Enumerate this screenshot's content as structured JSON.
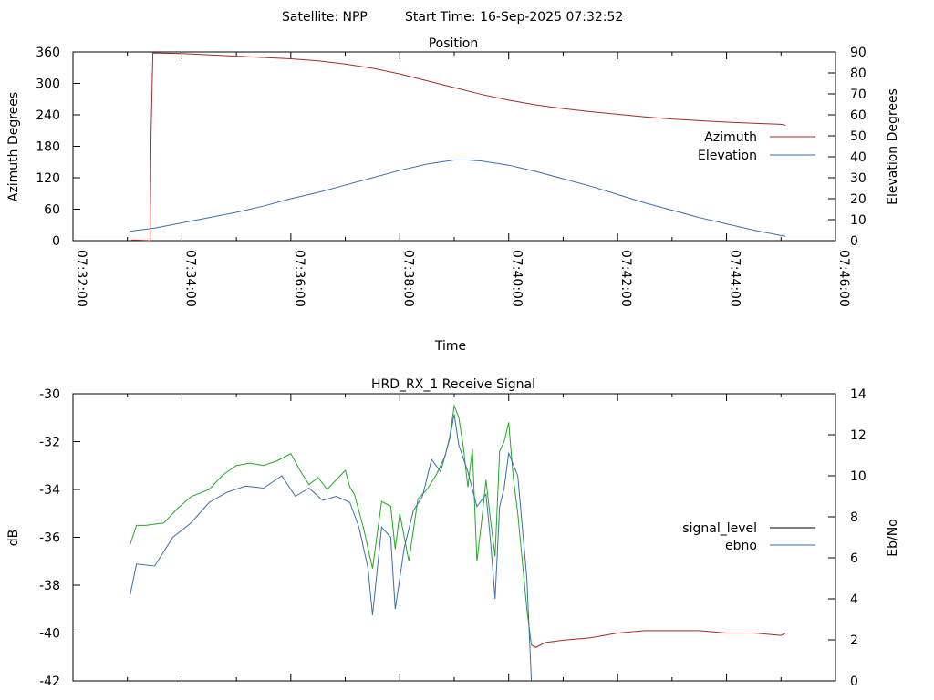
{
  "header": {
    "satellite": "Satellite: NPP",
    "start_time": "Start Time: 16-Sep-2025 07:32:52"
  },
  "chart_data": [
    {
      "type": "line",
      "title": "Position",
      "xlabel": "Time",
      "ylabel": "Azimuth Degrees",
      "y2label": "Elevation Degrees",
      "x_ticks": [
        "07:32:00",
        "07:34:00",
        "07:36:00",
        "07:38:00",
        "07:40:00",
        "07:42:00",
        "07:44:00",
        "07:46:00"
      ],
      "y_ticks": [
        0,
        60,
        120,
        180,
        240,
        300,
        360
      ],
      "y2_ticks": [
        0,
        10,
        20,
        30,
        40,
        50,
        60,
        70,
        80,
        90
      ],
      "xlim": [
        "07:32:00",
        "07:46:00"
      ],
      "ylim": [
        0,
        360
      ],
      "y2lim": [
        0,
        90
      ],
      "legend_position": "right",
      "series": [
        {
          "name": "Azimuth",
          "axis": "left",
          "color": "#a52a2a",
          "x": [
            "07:33:04",
            "07:33:10",
            "07:33:25",
            "07:33:26",
            "07:33:28",
            "07:34:00",
            "07:35:00",
            "07:36:00",
            "07:36:30",
            "07:37:00",
            "07:37:30",
            "07:38:00",
            "07:38:30",
            "07:39:00",
            "07:39:30",
            "07:40:00",
            "07:40:30",
            "07:41:00",
            "07:41:30",
            "07:42:00",
            "07:42:30",
            "07:43:00",
            "07:43:30",
            "07:44:00",
            "07:44:30",
            "07:45:00",
            "07:45:05"
          ],
          "y": [
            1,
            1,
            0,
            200,
            358,
            357,
            352,
            347,
            343,
            337,
            329,
            318,
            305,
            292,
            279,
            268,
            259,
            252,
            246,
            241,
            236,
            232,
            229,
            226,
            224,
            222,
            220
          ]
        },
        {
          "name": "Elevation",
          "axis": "right",
          "color": "#3b6fb0",
          "x": [
            "07:33:03",
            "07:33:30",
            "07:34:00",
            "07:34:30",
            "07:35:00",
            "07:35:30",
            "07:36:00",
            "07:36:30",
            "07:37:00",
            "07:37:30",
            "07:38:00",
            "07:38:30",
            "07:39:00",
            "07:39:15",
            "07:39:30",
            "07:40:00",
            "07:40:30",
            "07:41:00",
            "07:41:30",
            "07:42:00",
            "07:42:30",
            "07:43:00",
            "07:43:30",
            "07:44:00",
            "07:44:30",
            "07:45:05"
          ],
          "y": [
            4.5,
            6,
            8.5,
            11,
            13.5,
            16.5,
            20,
            23,
            26.5,
            30,
            33.5,
            36.5,
            38.5,
            38.5,
            38,
            36,
            33,
            29.5,
            26,
            22,
            18,
            14.5,
            11,
            8,
            5,
            2
          ]
        }
      ]
    },
    {
      "type": "line",
      "title": "HRD_RX_1 Receive Signal",
      "ylabel": "dB",
      "y2label": "Eb/No",
      "y_ticks": [
        -42,
        -40,
        -38,
        -36,
        -34,
        -32,
        -30
      ],
      "y2_ticks": [
        0,
        2,
        4,
        6,
        8,
        10,
        12,
        14
      ],
      "xlim": [
        "07:32:00",
        "07:46:00"
      ],
      "ylim": [
        -42,
        -30
      ],
      "y2lim": [
        0,
        14
      ],
      "legend_position": "right",
      "series": [
        {
          "name": "signal_level",
          "axis": "left",
          "color": "#000000",
          "segment_colors": [
            "#22aa22",
            "#a52a2a"
          ],
          "x": [
            "07:33:03",
            "07:33:10",
            "07:33:20",
            "07:33:40",
            "07:33:55",
            "07:34:10",
            "07:34:30",
            "07:34:45",
            "07:35:00",
            "07:35:15",
            "07:35:30",
            "07:35:45",
            "07:36:00",
            "07:36:10",
            "07:36:20",
            "07:36:30",
            "07:36:40",
            "07:36:50",
            "07:37:00",
            "07:37:05",
            "07:37:10",
            "07:37:20",
            "07:37:30",
            "07:37:40",
            "07:37:50",
            "07:37:55",
            "07:38:00",
            "07:38:10",
            "07:38:20",
            "07:38:30",
            "07:38:40",
            "07:38:50",
            "07:38:55",
            "07:39:00",
            "07:39:05",
            "07:39:10",
            "07:39:15",
            "07:39:20",
            "07:39:25",
            "07:39:30",
            "07:39:35",
            "07:39:40",
            "07:39:45",
            "07:39:50",
            "07:39:55",
            "07:40:00",
            "07:40:05",
            "07:40:10",
            "07:40:15",
            "07:40:20",
            "07:40:25",
            "07:40:30",
            "07:40:40",
            "07:41:00",
            "07:41:30",
            "07:42:00",
            "07:42:30",
            "07:43:00",
            "07:43:30",
            "07:44:00",
            "07:44:30",
            "07:45:00",
            "07:45:05"
          ],
          "y": [
            -36.3,
            -35.5,
            -35.5,
            -35.4,
            -34.8,
            -34.3,
            -34.0,
            -33.4,
            -33.0,
            -32.9,
            -33.0,
            -32.8,
            -32.5,
            -33.2,
            -33.8,
            -33.5,
            -34.0,
            -33.6,
            -33.2,
            -33.9,
            -34.2,
            -35.6,
            -37.3,
            -34.5,
            -34.7,
            -36.5,
            -35.0,
            -37.0,
            -34.4,
            -34.0,
            -33.4,
            -32.6,
            -31.8,
            -30.5,
            -31.0,
            -32.2,
            -33.9,
            -32.3,
            -37.0,
            -35.4,
            -33.6,
            -35.3,
            -36.8,
            -32.4,
            -32.0,
            -31.2,
            -33.5,
            -35.0,
            -37.0,
            -39.0,
            -40.5,
            -40.6,
            -40.4,
            -40.3,
            -40.2,
            -40.0,
            -39.9,
            -39.9,
            -39.9,
            -40.0,
            -40.0,
            -40.1,
            -40.0
          ]
        },
        {
          "name": "ebno",
          "axis": "right",
          "color": "#3b6fb0",
          "x": [
            "07:33:03",
            "07:33:10",
            "07:33:30",
            "07:33:50",
            "07:34:10",
            "07:34:30",
            "07:34:50",
            "07:35:10",
            "07:35:30",
            "07:35:50",
            "07:36:05",
            "07:36:20",
            "07:36:35",
            "07:36:50",
            "07:37:05",
            "07:37:15",
            "07:37:25",
            "07:37:30",
            "07:37:40",
            "07:37:50",
            "07:37:55",
            "07:38:05",
            "07:38:15",
            "07:38:25",
            "07:38:35",
            "07:38:45",
            "07:38:55",
            "07:39:00",
            "07:39:05",
            "07:39:15",
            "07:39:25",
            "07:39:35",
            "07:39:40",
            "07:39:45",
            "07:39:50",
            "07:39:55",
            "07:40:00",
            "07:40:10",
            "07:40:20",
            "07:40:25"
          ],
          "y": [
            4.2,
            5.7,
            5.6,
            7.0,
            7.7,
            8.7,
            9.2,
            9.5,
            9.4,
            10.0,
            9.0,
            9.4,
            8.8,
            9.0,
            8.7,
            7.5,
            5.5,
            3.2,
            7.5,
            7.0,
            3.5,
            6.5,
            8.3,
            9.0,
            10.8,
            10.2,
            11.8,
            13.0,
            11.5,
            10.2,
            8.5,
            9.1,
            6.8,
            4.0,
            8.5,
            9.4,
            11.1,
            10.0,
            5.0,
            0.0
          ]
        }
      ]
    }
  ]
}
